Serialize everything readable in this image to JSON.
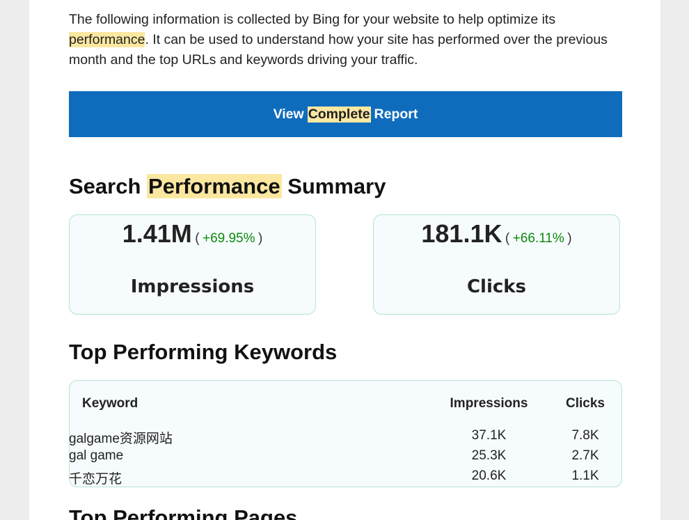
{
  "intro": {
    "before": "The following information is collected by Bing for your website to help optimize its",
    "highlight": "performance",
    "after": ". It can be used to understand how your site has performed over the previous month and the top URLs and keywords driving your traffic."
  },
  "button": {
    "before": "View",
    "highlight": "Complete",
    "after": "Report"
  },
  "summary": {
    "before": "Search",
    "highlight": "Performance",
    "after": "Summary",
    "cards": [
      {
        "value": "1.41M",
        "open": "(",
        "change": "+69.95%",
        "close": ")",
        "label": "Impressions"
      },
      {
        "value": "181.1K",
        "open": "(",
        "change": "+66.11%",
        "close": ")",
        "label": "Clicks"
      }
    ]
  },
  "keywords": {
    "title": "Top Performing Keywords",
    "table": {
      "header": [
        "Keyword",
        "Impressions",
        "Clicks"
      ],
      "rows": [
        [
          "galgame资源网站",
          "37.1K",
          "7.8K"
        ],
        [
          "gal game",
          "25.3K",
          "2.7K"
        ],
        [
          "千恋万花",
          "20.6K",
          "1.1K"
        ]
      ]
    }
  },
  "pages": {
    "title": "Top Performing Pages"
  }
}
